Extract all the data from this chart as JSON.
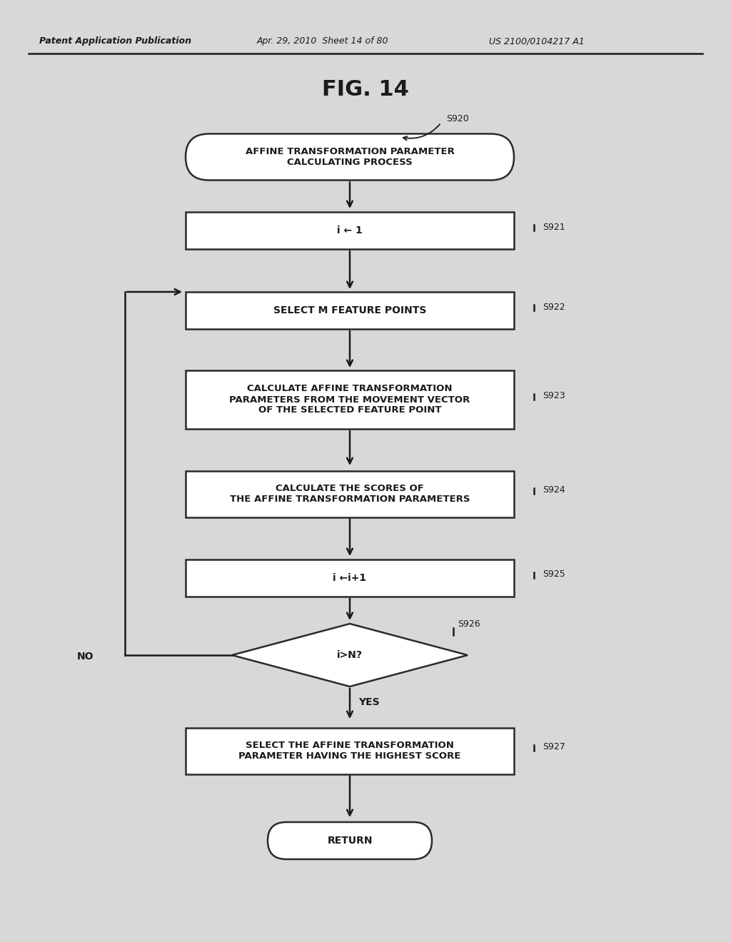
{
  "bg_color": "#d8d8d8",
  "header_text1": "Patent Application Publication",
  "header_text2": "Apr. 29, 2010  Sheet 14 of 80",
  "header_text3": "US 2100/0104217 A1",
  "fig_label": "FIG. 14",
  "arrow_color": "#1a1a1a",
  "box_edge_color": "#2a2a2a",
  "text_color": "#1a1a1a",
  "line_width": 1.8,
  "S920_label": "S920",
  "S920_text": "AFFINE TRANSFORMATION PARAMETER\nCALCULATING PROCESS",
  "S921_label": "S921",
  "S921_text": "i ← 1",
  "S922_label": "S922",
  "S922_text": "SELECT M FEATURE POINTS",
  "S923_label": "S923",
  "S923_text": "CALCULATE AFFINE TRANSFORMATION\nPARAMETERS FROM THE MOVEMENT VECTOR\nOF THE SELECTED FEATURE POINT",
  "S924_label": "S924",
  "S924_text": "CALCULATE THE SCORES OF\nTHE AFFINE TRANSFORMATION PARAMETERS",
  "S925_label": "S925",
  "S925_text": "i ←i+1",
  "S926_label": "S926",
  "S926_text": "i>N?",
  "S927_label": "S927",
  "S927_text": "SELECT THE AFFINE TRANSFORMATION\nPARAMETER HAVING THE HIGHEST SCORE",
  "RETURN_text": "RETURN",
  "NO_text": "NO",
  "YES_text": "YES"
}
